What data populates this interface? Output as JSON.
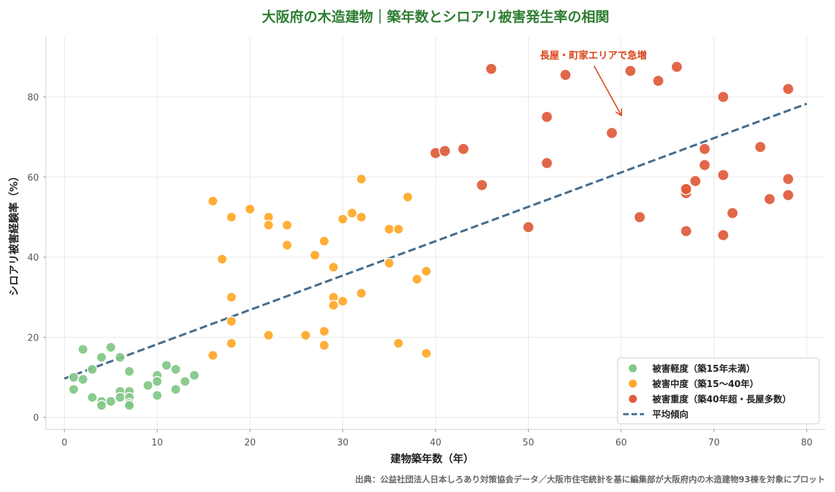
{
  "chart_data": {
    "type": "scatter",
    "title": "大阪府の木造建物｜築年数とシロアリ被害発生率の相関",
    "xlabel": "建物築年数（年）",
    "ylabel": "シロアリ被害経験率（%）",
    "xlim": [
      -2,
      82
    ],
    "ylim": [
      -3,
      95
    ],
    "xticks": [
      0,
      10,
      20,
      30,
      40,
      50,
      60,
      70,
      80
    ],
    "yticks": [
      0,
      20,
      40,
      60,
      80
    ],
    "grid": true,
    "legend_position": "bottom-right",
    "series": [
      {
        "name": "被害軽度（築15年未満）",
        "color": "#81c784",
        "points": [
          [
            1,
            10
          ],
          [
            1,
            7
          ],
          [
            2,
            17
          ],
          [
            2,
            9.5
          ],
          [
            3,
            12
          ],
          [
            3,
            5
          ],
          [
            4,
            15
          ],
          [
            4,
            4
          ],
          [
            4,
            3
          ],
          [
            5,
            17.5
          ],
          [
            5,
            4
          ],
          [
            6,
            15
          ],
          [
            6,
            6.5
          ],
          [
            6,
            5
          ],
          [
            7,
            11.5
          ],
          [
            7,
            6.5
          ],
          [
            7,
            5
          ],
          [
            7,
            3.5
          ],
          [
            7,
            3
          ],
          [
            9,
            8
          ],
          [
            10,
            10.5
          ],
          [
            10,
            9
          ],
          [
            10,
            5.5
          ],
          [
            11,
            13
          ],
          [
            12,
            12
          ],
          [
            12,
            7
          ],
          [
            13,
            9
          ],
          [
            14,
            10.5
          ]
        ]
      },
      {
        "name": "被害中度（築15〜40年）",
        "color": "#ffa726",
        "points": [
          [
            16,
            54
          ],
          [
            16,
            15.5
          ],
          [
            17,
            39.5
          ],
          [
            18,
            50
          ],
          [
            18,
            30
          ],
          [
            18,
            24
          ],
          [
            18,
            18.5
          ],
          [
            20,
            52
          ],
          [
            22,
            50
          ],
          [
            22,
            48
          ],
          [
            22,
            20.5
          ],
          [
            24,
            48
          ],
          [
            24,
            43
          ],
          [
            26,
            20.5
          ],
          [
            27,
            40.5
          ],
          [
            28,
            44
          ],
          [
            28,
            21.5
          ],
          [
            28,
            18
          ],
          [
            29,
            37.5
          ],
          [
            29,
            30
          ],
          [
            29,
            28
          ],
          [
            30,
            49.5
          ],
          [
            30,
            29
          ],
          [
            31,
            51
          ],
          [
            32,
            59.5
          ],
          [
            32,
            50
          ],
          [
            32,
            31
          ],
          [
            35,
            47
          ],
          [
            35,
            38.5
          ],
          [
            36,
            47
          ],
          [
            36,
            18.5
          ],
          [
            37,
            55
          ],
          [
            38,
            34.5
          ],
          [
            39,
            36.5
          ],
          [
            39,
            16
          ]
        ]
      },
      {
        "name": "被害重度（築40年超・長屋多数）",
        "color": "#e05a3a",
        "points": [
          [
            40,
            66
          ],
          [
            41,
            66.5
          ],
          [
            43,
            67
          ],
          [
            45,
            58
          ],
          [
            46,
            87
          ],
          [
            50,
            47.5
          ],
          [
            52,
            75
          ],
          [
            52,
            63.5
          ],
          [
            54,
            85.5
          ],
          [
            59,
            71
          ],
          [
            61,
            86.5
          ],
          [
            62,
            50
          ],
          [
            64,
            84
          ],
          [
            66,
            87.5
          ],
          [
            67,
            57
          ],
          [
            67,
            56
          ],
          [
            67,
            46.5
          ],
          [
            68,
            59
          ],
          [
            69,
            67
          ],
          [
            69,
            63
          ],
          [
            71,
            80
          ],
          [
            71,
            60.5
          ],
          [
            71,
            45.5
          ],
          [
            72,
            51
          ],
          [
            75,
            67.5
          ],
          [
            76,
            54.5
          ],
          [
            78,
            82
          ],
          [
            78,
            59.5
          ],
          [
            78,
            55.5
          ],
          [
            67,
            57
          ]
        ]
      }
    ],
    "trend": {
      "name": "平均傾向",
      "color": "#466d8c",
      "x": [
        0,
        80
      ],
      "y": [
        9.7,
        78.3
      ]
    },
    "annotation": {
      "text": "長屋・町家エリアで急増",
      "point": [
        60,
        75.5
      ],
      "text_anchor_point": [
        57,
        89.5
      ],
      "color": "#d84315"
    },
    "source": "出典：公益社団法人日本しろあり対策協会データ／大阪市住宅統計を基に編集部が大阪府内の木造建物93棟を対象にプロット"
  }
}
